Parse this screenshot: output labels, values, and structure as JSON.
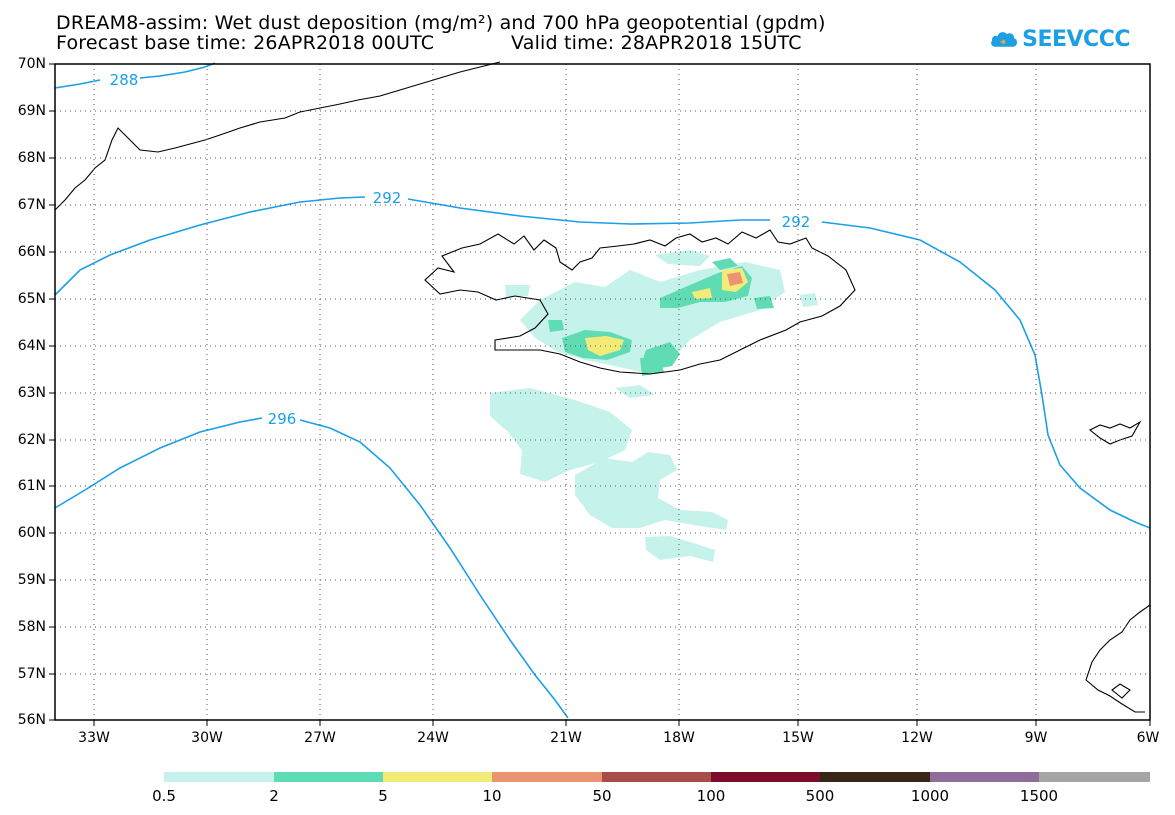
{
  "title": {
    "line1": "DREAM8-assim: Wet dust deposition (mg/m²) and 700 hPa geopotential (gpdm)",
    "forecast": "Forecast base time: 26APR2018 00UTC",
    "valid": "Valid time: 28APR2018 15UTC"
  },
  "logo": {
    "text": "SEEVCCC",
    "icon": "cloud-icon"
  },
  "axes": {
    "lat_labels": [
      "70N",
      "69N",
      "68N",
      "67N",
      "66N",
      "65N",
      "64N",
      "63N",
      "62N",
      "61N",
      "60N",
      "59N",
      "58N",
      "57N",
      "56N"
    ],
    "lon_labels": [
      "33W",
      "30W",
      "27W",
      "24W",
      "21W",
      "18W",
      "15W",
      "12W",
      "9W",
      "6W"
    ],
    "lat_range": [
      56,
      70
    ],
    "lon_range": [
      -34.5,
      -6
    ],
    "grid": "dotted"
  },
  "contours": [
    {
      "label": "288"
    },
    {
      "label": "292"
    },
    {
      "label": "292"
    },
    {
      "label": "296"
    }
  ],
  "colorbar": {
    "labels": [
      "0.5",
      "2",
      "5",
      "10",
      "50",
      "100",
      "500",
      "1000",
      "1500"
    ],
    "colors": [
      "#c6f2ec",
      "#5fdcb4",
      "#f3eb78",
      "#ec9471",
      "#a74e48",
      "#7c0c2c",
      "#3a2619",
      "#8e6c9c",
      "#a5a5a5"
    ]
  },
  "colors": {
    "contour": "#1a9fe8",
    "coast": "#000000"
  }
}
